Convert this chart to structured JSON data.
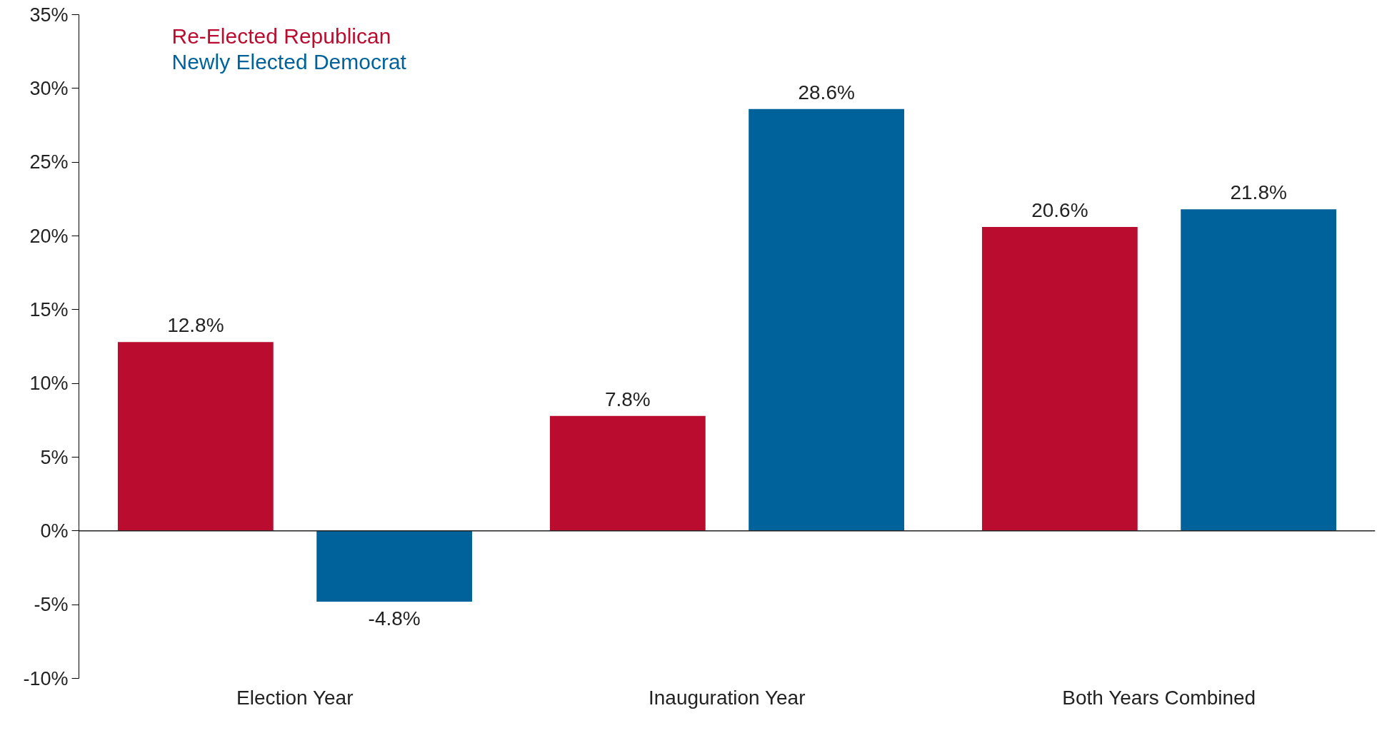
{
  "chart_data": {
    "type": "bar",
    "categories": [
      "Election Year",
      "Inauguration Year",
      "Both Years Combined"
    ],
    "series": [
      {
        "name": "Re-Elected Republican",
        "color": "#ba0c2f",
        "values": [
          12.8,
          7.8,
          20.6
        ],
        "value_labels": [
          "12.8%",
          "7.8%",
          "20.6%"
        ]
      },
      {
        "name": "Newly Elected Democrat",
        "color": "#00629b",
        "values": [
          -4.8,
          28.6,
          21.8
        ],
        "value_labels": [
          "-4.8%",
          "28.6%",
          "21.8%"
        ]
      }
    ],
    "ylim": [
      -10,
      35
    ],
    "yticks": [
      {
        "value": -10,
        "label": "-10%"
      },
      {
        "value": -5,
        "label": "-5%"
      },
      {
        "value": 0,
        "label": "0%"
      },
      {
        "value": 5,
        "label": "5%"
      },
      {
        "value": 10,
        "label": "10%"
      },
      {
        "value": 15,
        "label": "15%"
      },
      {
        "value": 20,
        "label": "20%"
      },
      {
        "value": 25,
        "label": "25%"
      },
      {
        "value": 30,
        "label": "30%"
      },
      {
        "value": 35,
        "label": "35%"
      }
    ],
    "ref_lines": [
      {
        "axis": "y",
        "value": 0,
        "color": "#222222"
      }
    ],
    "grid": false,
    "legend": "top left"
  }
}
